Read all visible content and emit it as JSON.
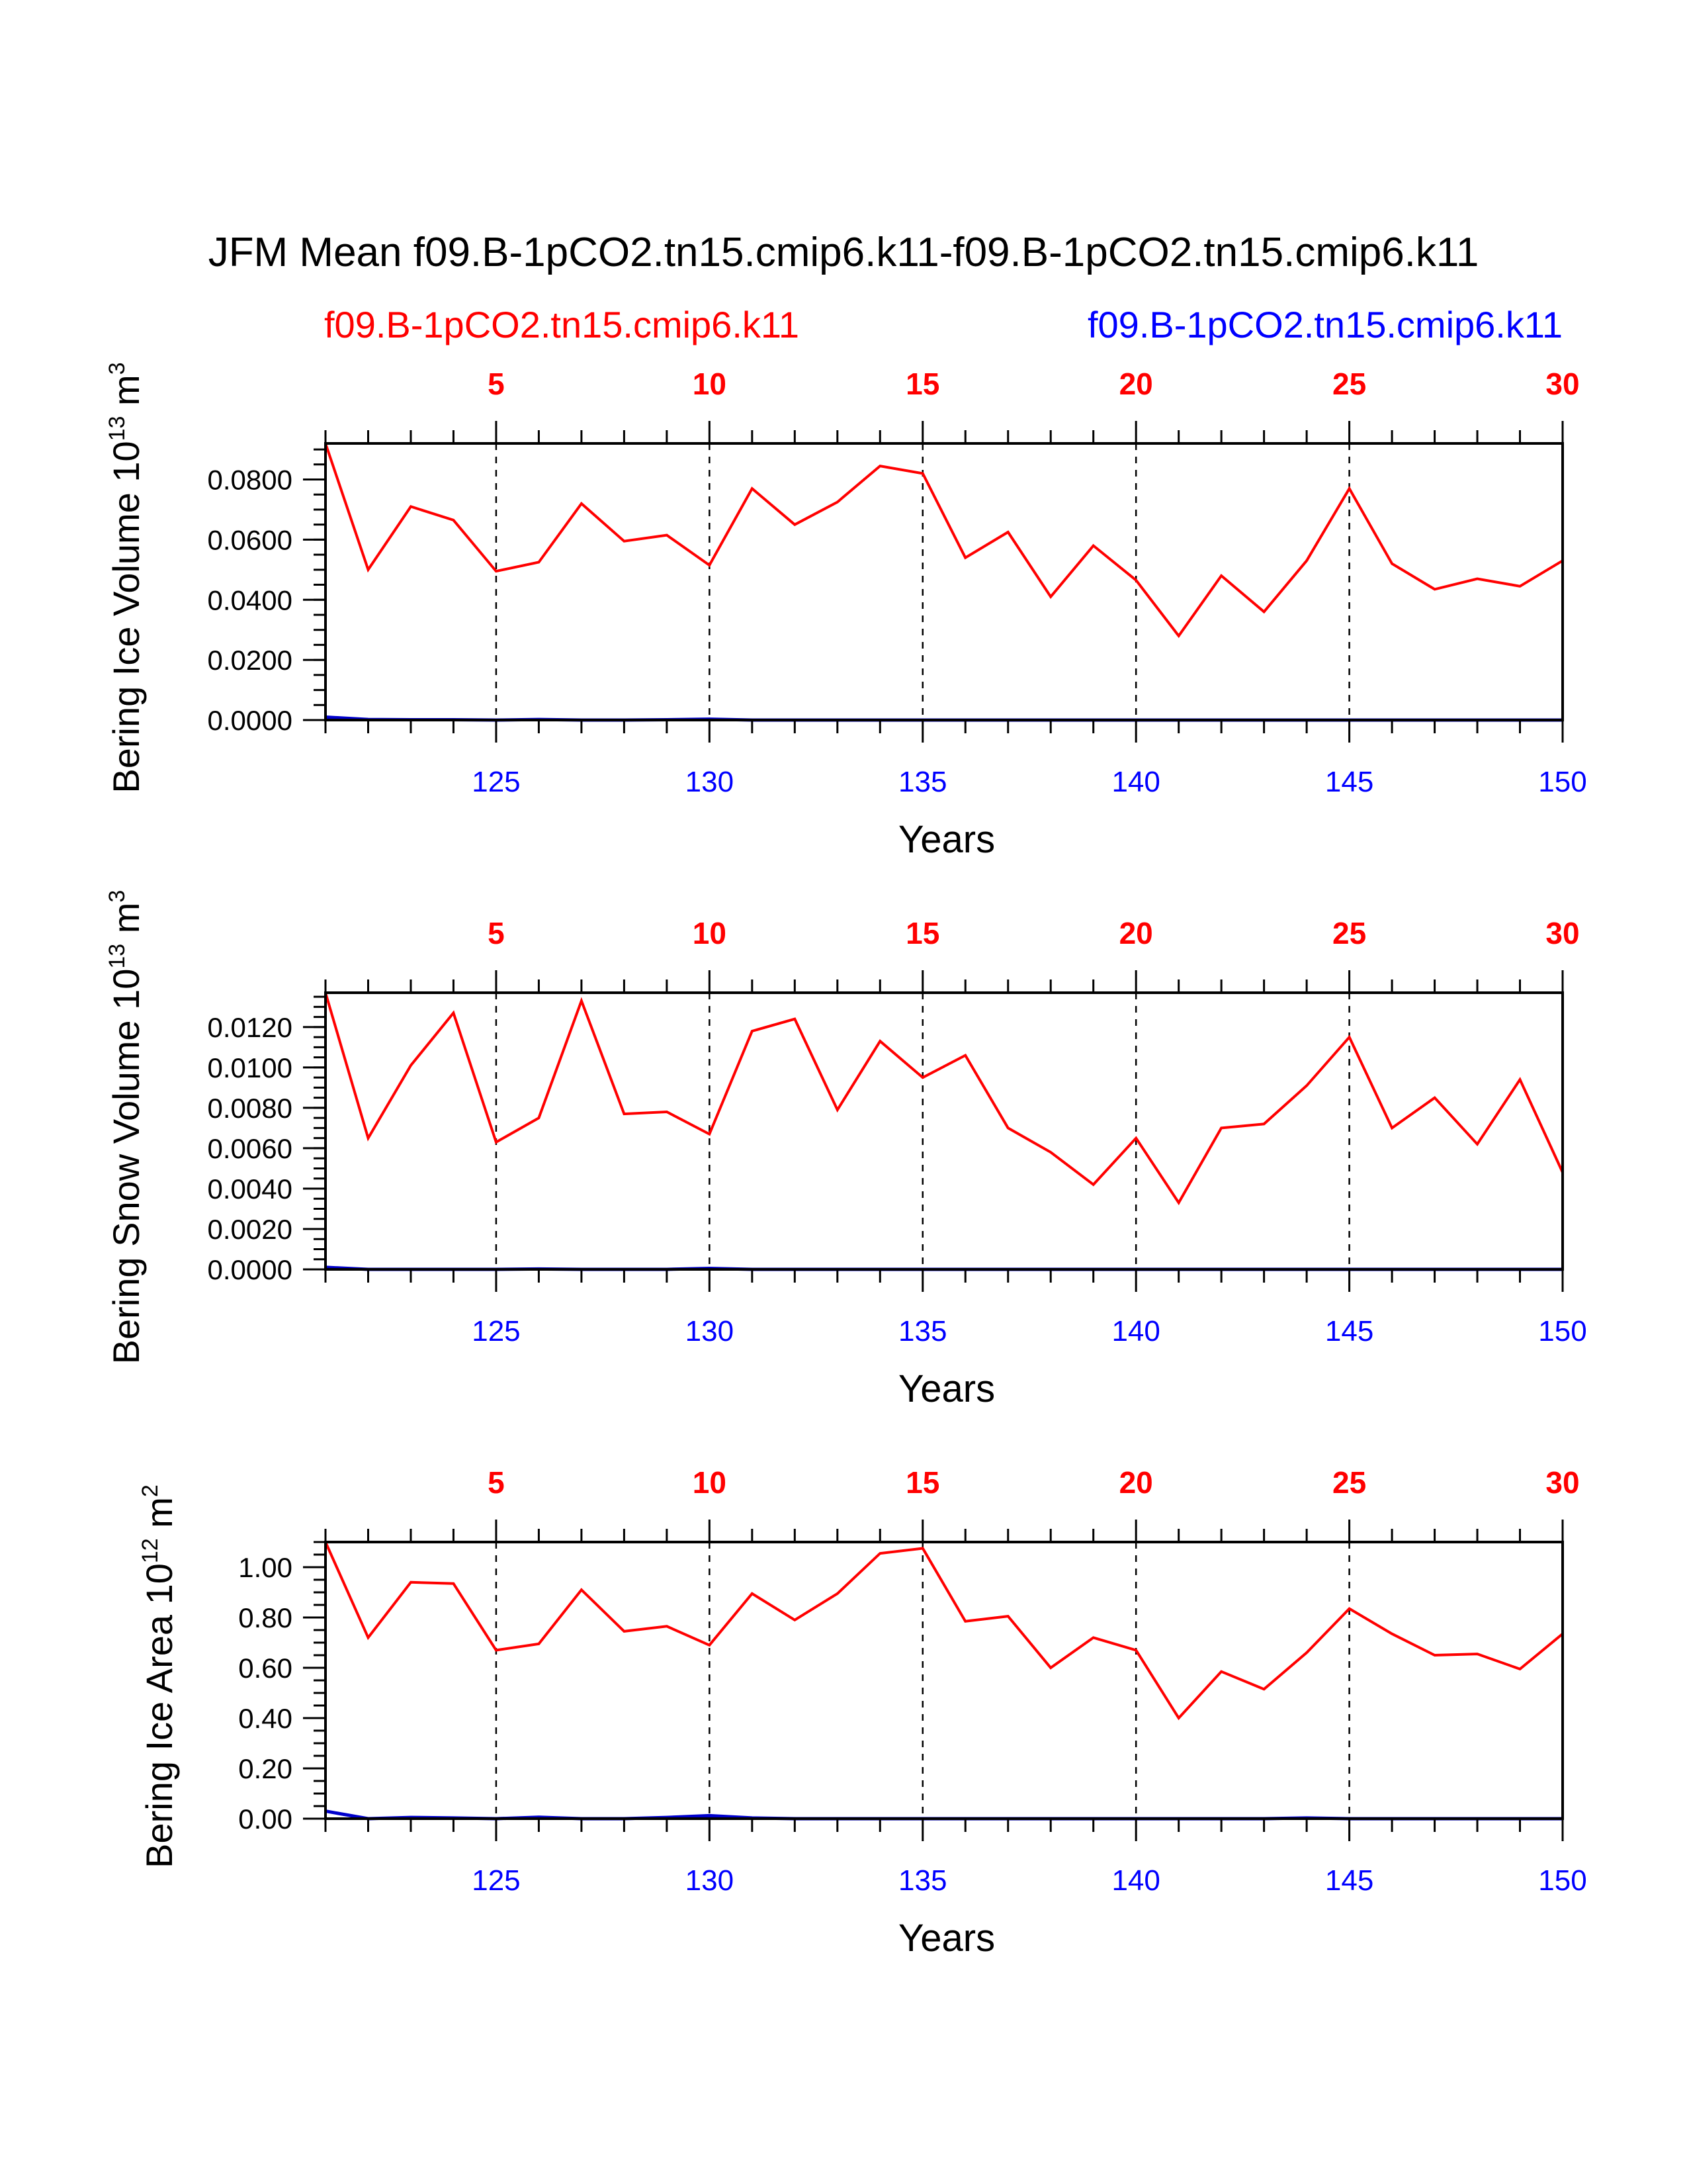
{
  "title": "JFM Mean f09.B-1pCO2.tn15.cmip6.k11-f09.B-1pCO2.tn15.cmip6.k11",
  "legend": {
    "left_label": "f09.B-1pCO2.tn15.cmip6.k11",
    "right_label": "f09.B-1pCO2.tn15.cmip6.k11",
    "left_color": "#ff0000",
    "right_color": "#0000ff"
  },
  "colors": {
    "series1": "#ff0000",
    "series2": "#0000cc"
  },
  "chart_data": [
    {
      "type": "line",
      "ylabel_main": "Bering Ice Volume 10",
      "ylabel_exp": "13",
      "ylabel_unit": " m",
      "ylabel_unit_exp": "3",
      "xlabel": "Years",
      "xlim": [
        121,
        150
      ],
      "ylim": [
        0,
        0.092
      ],
      "yticks": [
        0.0,
        0.02,
        0.04,
        0.06,
        0.08
      ],
      "ytick_labels": [
        "0.0000",
        "0.0200",
        "0.0400",
        "0.0600",
        "0.0800"
      ],
      "yminor_step": 0.005,
      "bottom_ticks": [
        125,
        130,
        135,
        140,
        145,
        150
      ],
      "bottom_tick_labels": [
        "125",
        "130",
        "135",
        "140",
        "145",
        "150"
      ],
      "top_ticks": [
        5,
        10,
        15,
        20,
        25,
        30
      ],
      "top_tick_labels": [
        "5",
        "10",
        "15",
        "20",
        "25",
        "30"
      ],
      "x": [
        121,
        122,
        123,
        124,
        125,
        126,
        127,
        128,
        129,
        130,
        131,
        132,
        133,
        134,
        135,
        136,
        137,
        138,
        139,
        140,
        141,
        142,
        143,
        144,
        145,
        146,
        147,
        148,
        149,
        150
      ],
      "series": [
        {
          "name": "f09.B-1pCO2.tn15.cmip6.k11",
          "values": [
            0.092,
            0.05,
            0.071,
            0.0665,
            0.0495,
            0.0525,
            0.072,
            0.0595,
            0.0615,
            0.0515,
            0.077,
            0.065,
            0.0725,
            0.0845,
            0.082,
            0.054,
            0.0625,
            0.041,
            0.058,
            0.0465,
            0.028,
            0.048,
            0.036,
            0.053,
            0.077,
            0.052,
            0.0435,
            0.047,
            0.0445,
            0.053
          ]
        },
        {
          "name": "f09.B-1pCO2.tn15.cmip6.k11",
          "values": [
            0.001,
            0.0002,
            0.0001,
            0.0001,
            0.0,
            0.0002,
            0.0,
            0.0,
            0.0001,
            0.0003,
            0.0,
            0.0,
            0.0,
            0.0,
            0.0,
            0.0,
            0.0,
            0.0,
            0.0,
            0.0,
            0.0,
            0.0,
            0.0,
            0.0,
            0.0,
            0.0,
            0.0,
            0.0,
            0.0,
            0.0
          ]
        }
      ]
    },
    {
      "type": "line",
      "ylabel_main": "Bering Snow Volume 10",
      "ylabel_exp": "13",
      "ylabel_unit": " m",
      "ylabel_unit_exp": "3",
      "xlabel": "Years",
      "xlim": [
        121,
        150
      ],
      "ylim": [
        0,
        0.0137
      ],
      "yticks": [
        0.0,
        0.002,
        0.004,
        0.006,
        0.008,
        0.01,
        0.012
      ],
      "ytick_labels": [
        "0.0000",
        "0.0020",
        "0.0040",
        "0.0060",
        "0.0080",
        "0.0100",
        "0.0120"
      ],
      "yminor_step": 0.0005,
      "bottom_ticks": [
        125,
        130,
        135,
        140,
        145,
        150
      ],
      "bottom_tick_labels": [
        "125",
        "130",
        "135",
        "140",
        "145",
        "150"
      ],
      "top_ticks": [
        5,
        10,
        15,
        20,
        25,
        30
      ],
      "top_tick_labels": [
        "5",
        "10",
        "15",
        "20",
        "25",
        "30"
      ],
      "x": [
        121,
        122,
        123,
        124,
        125,
        126,
        127,
        128,
        129,
        130,
        131,
        132,
        133,
        134,
        135,
        136,
        137,
        138,
        139,
        140,
        141,
        142,
        143,
        144,
        145,
        146,
        147,
        148,
        149,
        150
      ],
      "series": [
        {
          "name": "f09.B-1pCO2.tn15.cmip6.k11",
          "values": [
            0.0137,
            0.0065,
            0.0101,
            0.0127,
            0.0063,
            0.0075,
            0.0133,
            0.0077,
            0.0078,
            0.0067,
            0.0118,
            0.0124,
            0.0079,
            0.0113,
            0.0095,
            0.0106,
            0.007,
            0.0058,
            0.0042,
            0.0065,
            0.0033,
            0.007,
            0.0072,
            0.0091,
            0.0115,
            0.007,
            0.0085,
            0.0062,
            0.0094,
            0.0048
          ]
        },
        {
          "name": "f09.B-1pCO2.tn15.cmip6.k11",
          "values": [
            0.0001,
            0.0,
            0.0,
            0.0,
            0.0,
            2e-05,
            0.0,
            0.0,
            0.0,
            5e-05,
            0.0,
            0.0,
            0.0,
            0.0,
            0.0,
            0.0,
            0.0,
            0.0,
            0.0,
            0.0,
            0.0,
            0.0,
            0.0,
            0.0,
            0.0,
            0.0,
            0.0,
            0.0,
            0.0,
            0.0
          ]
        }
      ]
    },
    {
      "type": "line",
      "ylabel_main": "Bering Ice Area 10",
      "ylabel_exp": "12",
      "ylabel_unit": " m",
      "ylabel_unit_exp": "2",
      "xlabel": "Years",
      "xlim": [
        121,
        150
      ],
      "ylim": [
        0,
        1.1
      ],
      "yticks": [
        0.0,
        0.2,
        0.4,
        0.6,
        0.8,
        1.0
      ],
      "ytick_labels": [
        "0.00",
        "0.20",
        "0.40",
        "0.60",
        "0.80",
        "1.00"
      ],
      "yminor_step": 0.05,
      "bottom_ticks": [
        125,
        130,
        135,
        140,
        145,
        150
      ],
      "bottom_tick_labels": [
        "125",
        "130",
        "135",
        "140",
        "145",
        "150"
      ],
      "top_ticks": [
        5,
        10,
        15,
        20,
        25,
        30
      ],
      "top_tick_labels": [
        "5",
        "10",
        "15",
        "20",
        "25",
        "30"
      ],
      "x": [
        121,
        122,
        123,
        124,
        125,
        126,
        127,
        128,
        129,
        130,
        131,
        132,
        133,
        134,
        135,
        136,
        137,
        138,
        139,
        140,
        141,
        142,
        143,
        144,
        145,
        146,
        147,
        148,
        149,
        150
      ],
      "series": [
        {
          "name": "f09.B-1pCO2.tn15.cmip6.k11",
          "values": [
            1.1,
            0.72,
            0.94,
            0.935,
            0.67,
            0.695,
            0.91,
            0.745,
            0.765,
            0.69,
            0.895,
            0.79,
            0.895,
            1.055,
            1.075,
            0.785,
            0.805,
            0.6,
            0.72,
            0.67,
            0.4,
            0.585,
            0.515,
            0.66,
            0.835,
            0.735,
            0.65,
            0.655,
            0.595,
            0.735
          ]
        },
        {
          "name": "f09.B-1pCO2.tn15.cmip6.k11",
          "values": [
            0.03,
            0.0,
            0.005,
            0.003,
            0.0,
            0.006,
            0.0,
            0.0,
            0.005,
            0.012,
            0.003,
            0.0,
            0.0,
            0.0,
            0.0,
            0.0,
            0.0,
            0.0,
            0.0,
            0.0,
            0.0,
            0.0,
            0.0,
            0.003,
            0.0,
            0.0,
            0.0,
            0.0,
            0.0,
            0.0
          ]
        }
      ]
    }
  ]
}
